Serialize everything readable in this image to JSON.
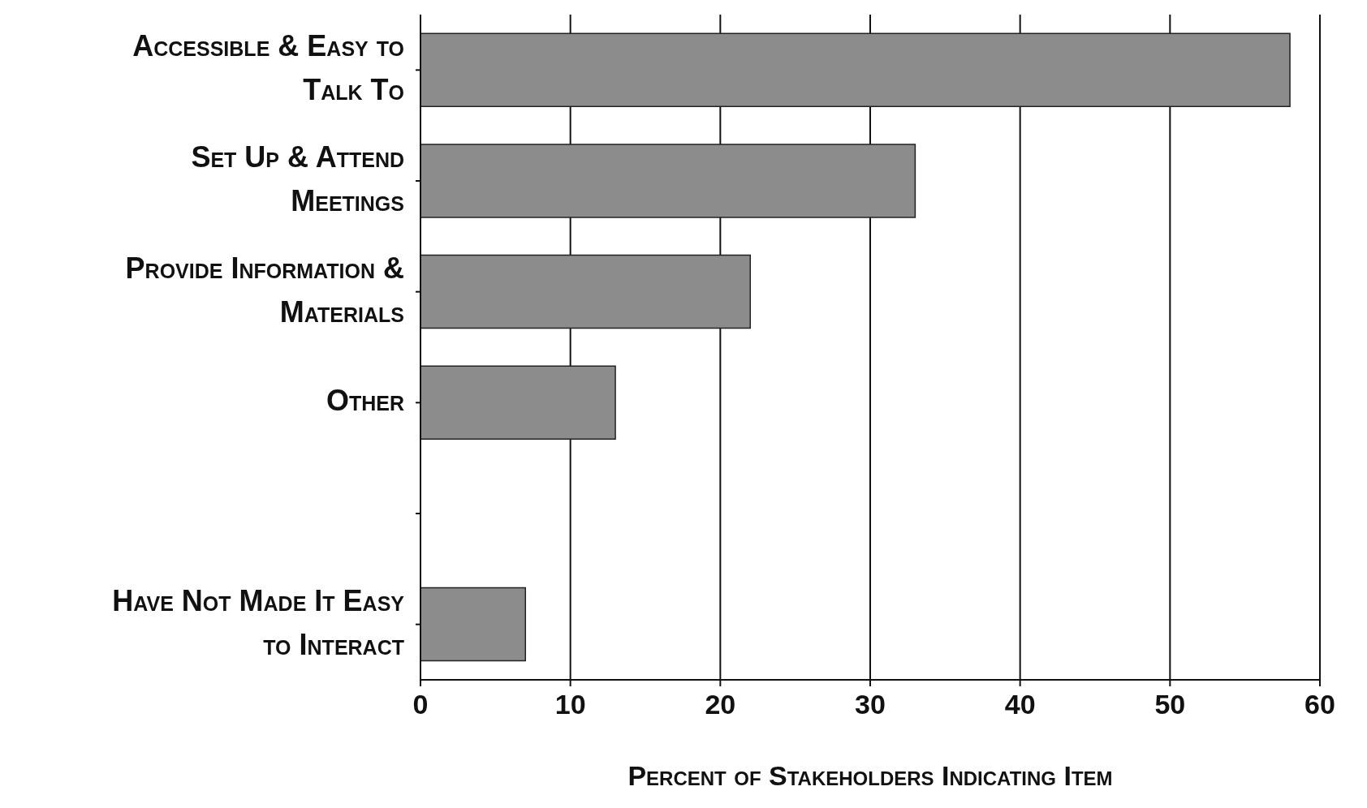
{
  "chart_data": {
    "type": "bar",
    "orientation": "horizontal",
    "xlabel": "Percent of Stakeholders Indicating Item",
    "categories": [
      "Accessible & Easy to Talk To",
      "Set Up & Attend Meetings",
      "Provide Information & Materials",
      "Other",
      null,
      "Have Not Made It Easy to Interact"
    ],
    "values": [
      58,
      33,
      22,
      13,
      null,
      7
    ],
    "color": "#8c8c8c",
    "xlim": [
      0,
      60
    ],
    "xticks": [
      0,
      10,
      20,
      30,
      40,
      50,
      60
    ],
    "grid": "x"
  }
}
